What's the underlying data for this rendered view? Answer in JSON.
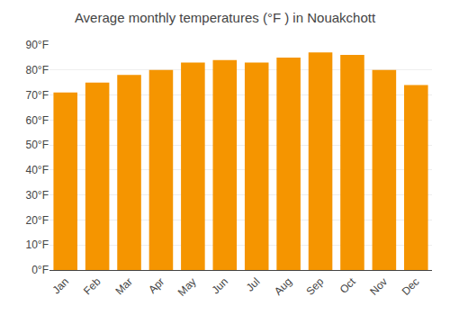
{
  "chart_data": {
    "type": "bar",
    "title": "Average monthly temperatures (°F ) in Nouakchott",
    "categories": [
      "Jan",
      "Feb",
      "Mar",
      "Apr",
      "May",
      "Jun",
      "Jul",
      "Aug",
      "Sep",
      "Oct",
      "Nov",
      "Dec"
    ],
    "values": [
      71,
      75,
      78,
      80,
      83,
      84,
      83,
      85,
      87,
      86,
      80,
      74
    ],
    "color": "#F59500",
    "ylim": [
      0,
      90
    ],
    "yticks": [
      {
        "value": 0,
        "label": "0°F"
      },
      {
        "value": 10,
        "label": "10°F"
      },
      {
        "value": 20,
        "label": "20°F"
      },
      {
        "value": 30,
        "label": "30°F"
      },
      {
        "value": 40,
        "label": "40°F"
      },
      {
        "value": 50,
        "label": "50°F"
      },
      {
        "value": 60,
        "label": "60°F"
      },
      {
        "value": 70,
        "label": "70°F"
      },
      {
        "value": 80,
        "label": "80°F"
      },
      {
        "value": 90,
        "label": "90°F"
      }
    ],
    "grid": true
  }
}
